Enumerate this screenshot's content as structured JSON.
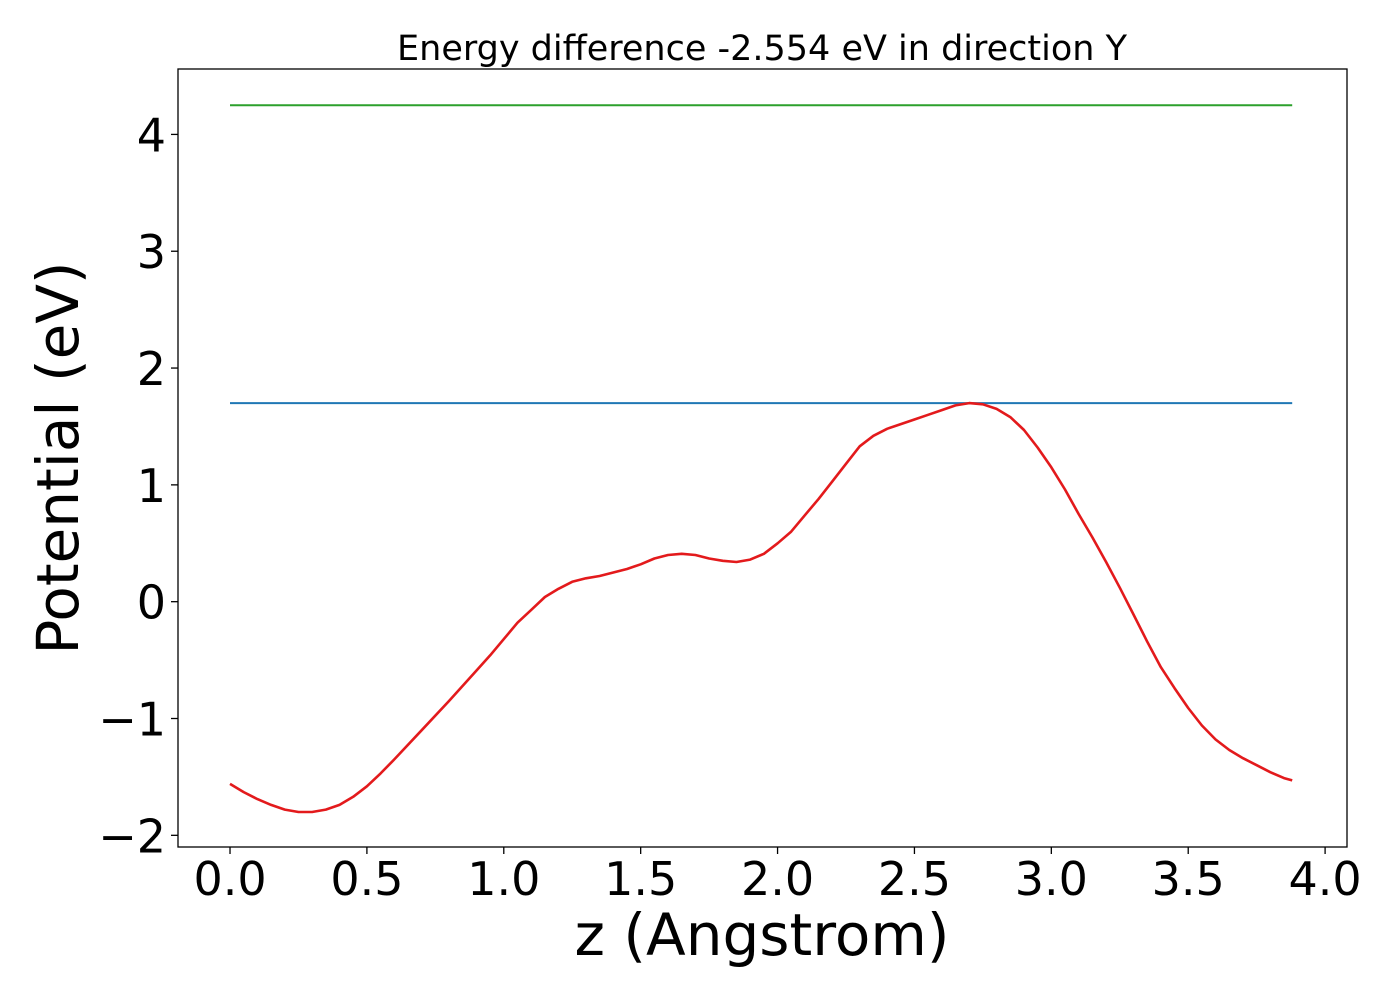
{
  "chart_data": {
    "type": "line",
    "title": "Energy difference -2.554 eV in direction Y",
    "xlabel": "z (Angstrom)",
    "ylabel": "Potential (eV)",
    "xlim": [
      -0.19,
      4.08
    ],
    "ylim": [
      -2.1,
      4.56
    ],
    "xticks": [
      0.0,
      0.5,
      1.0,
      1.5,
      2.0,
      2.5,
      3.0,
      3.5,
      4.0
    ],
    "xtick_labels": [
      "0.0",
      "0.5",
      "1.0",
      "1.5",
      "2.0",
      "2.5",
      "3.0",
      "3.5",
      "4.0"
    ],
    "yticks": [
      -2,
      -1,
      0,
      1,
      2,
      3,
      4
    ],
    "ytick_labels": [
      "−2",
      "−1",
      "0",
      "1",
      "2",
      "3",
      "4"
    ],
    "grid": false,
    "series": [
      {
        "color": "#2ca02c",
        "x": [
          0.0,
          3.88
        ],
        "y": [
          4.25,
          4.25
        ]
      },
      {
        "color": "#1f77b4",
        "x": [
          0.0,
          3.88
        ],
        "y": [
          1.7,
          1.7
        ]
      },
      {
        "color": "#e31a1c",
        "x": [
          0.0,
          0.05,
          0.1,
          0.15,
          0.2,
          0.25,
          0.3,
          0.35,
          0.4,
          0.45,
          0.5,
          0.55,
          0.6,
          0.7,
          0.8,
          0.9,
          0.95,
          1.0,
          1.05,
          1.1,
          1.15,
          1.2,
          1.25,
          1.3,
          1.35,
          1.4,
          1.45,
          1.5,
          1.55,
          1.6,
          1.65,
          1.7,
          1.75,
          1.8,
          1.85,
          1.9,
          1.95,
          2.0,
          2.05,
          2.1,
          2.15,
          2.2,
          2.25,
          2.3,
          2.35,
          2.4,
          2.45,
          2.5,
          2.55,
          2.6,
          2.65,
          2.7,
          2.75,
          2.8,
          2.85,
          2.9,
          2.95,
          3.0,
          3.05,
          3.1,
          3.15,
          3.2,
          3.25,
          3.3,
          3.35,
          3.4,
          3.45,
          3.5,
          3.55,
          3.6,
          3.65,
          3.7,
          3.75,
          3.8,
          3.85,
          3.88
        ],
        "y": [
          -1.56,
          -1.63,
          -1.69,
          -1.74,
          -1.78,
          -1.8,
          -1.8,
          -1.78,
          -1.74,
          -1.67,
          -1.58,
          -1.47,
          -1.35,
          -1.1,
          -0.85,
          -0.59,
          -0.46,
          -0.32,
          -0.18,
          -0.07,
          0.04,
          0.11,
          0.17,
          0.2,
          0.22,
          0.25,
          0.28,
          0.32,
          0.37,
          0.4,
          0.41,
          0.4,
          0.37,
          0.35,
          0.34,
          0.36,
          0.41,
          0.5,
          0.6,
          0.74,
          0.88,
          1.03,
          1.18,
          1.33,
          1.42,
          1.48,
          1.52,
          1.56,
          1.6,
          1.64,
          1.68,
          1.7,
          1.69,
          1.65,
          1.58,
          1.47,
          1.32,
          1.15,
          0.96,
          0.75,
          0.55,
          0.34,
          0.12,
          -0.11,
          -0.34,
          -0.56,
          -0.74,
          -0.91,
          -1.06,
          -1.18,
          -1.27,
          -1.34,
          -1.4,
          -1.46,
          -1.51,
          -1.53
        ]
      }
    ]
  }
}
